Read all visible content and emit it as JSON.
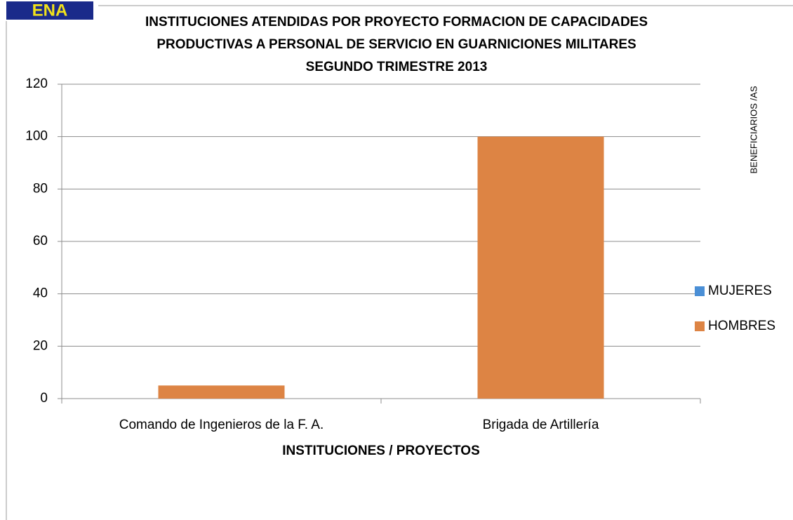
{
  "logo": "ENA",
  "chart_data": {
    "type": "bar",
    "title": [
      "INSTITUCIONES ATENDIDAS POR PROYECTO FORMACION DE CAPACIDADES",
      "PRODUCTIVAS A PERSONAL DE SERVICIO EN GUARNICIONES MILITARES",
      "SEGUNDO TRIMESTRE 2013"
    ],
    "x_label": "INSTITUCIONES / PROYECTOS",
    "y_label": "BENEFICIARIOS /AS",
    "categories": [
      "Comando de Ingenieros de la F. A.",
      "Brigada de Artillería"
    ],
    "series": [
      {
        "name": "MUJERES",
        "color": "#4a8fd6",
        "values": [
          0,
          0
        ]
      },
      {
        "name": "HOMBRES",
        "color": "#dd8444",
        "values": [
          5,
          100
        ]
      }
    ],
    "ylim": [
      0,
      120
    ],
    "yticks": [
      0,
      20,
      40,
      60,
      80,
      100,
      120
    ],
    "grid": true,
    "legend": "right"
  }
}
